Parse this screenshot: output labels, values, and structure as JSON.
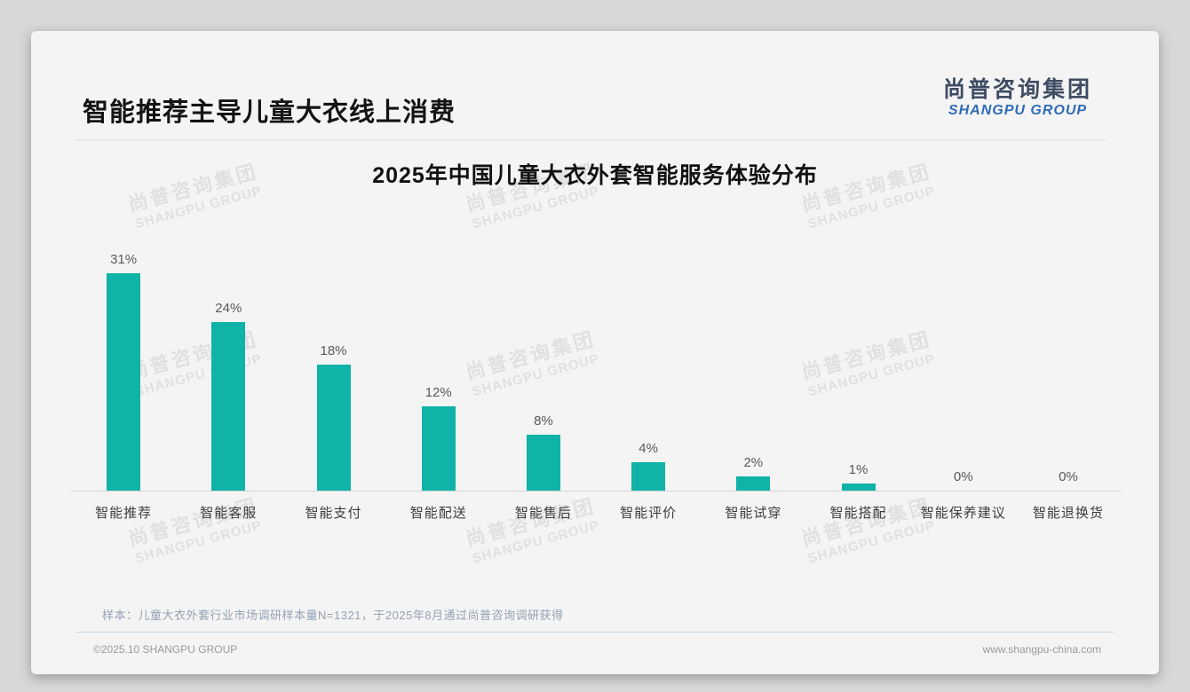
{
  "header": {
    "title": "智能推荐主导儿童大衣线上消费"
  },
  "logo": {
    "cn": "尚普咨询集团",
    "en": "SHANGPU GROUP"
  },
  "watermark": {
    "cn": "尚普咨询集团",
    "en": "SHANGPU GROUP"
  },
  "chart_data": {
    "type": "bar",
    "title": "2025年中国儿童大衣外套智能服务体验分布",
    "categories": [
      "智能推荐",
      "智能客服",
      "智能支付",
      "智能配送",
      "智能售后",
      "智能评价",
      "智能试穿",
      "智能搭配",
      "智能保养建议",
      "智能退换货"
    ],
    "values": [
      31,
      24,
      18,
      12,
      8,
      4,
      2,
      1,
      0,
      0
    ],
    "value_labels": [
      "31%",
      "24%",
      "18%",
      "12%",
      "8%",
      "4%",
      "2%",
      "1%",
      "0%",
      "0%"
    ],
    "unit": "%",
    "bar_color": "#0fb3a8",
    "ylim": [
      0,
      35
    ],
    "grid": false,
    "legend": false,
    "xlabel": "",
    "ylabel": ""
  },
  "note": "样本：儿童大衣外套行业市场调研样本量N=1321，于2025年8月通过尚普咨询调研获得",
  "footer": {
    "copyright": "©2025.10 SHANGPU GROUP",
    "website": "www.shangpu-china.com"
  }
}
